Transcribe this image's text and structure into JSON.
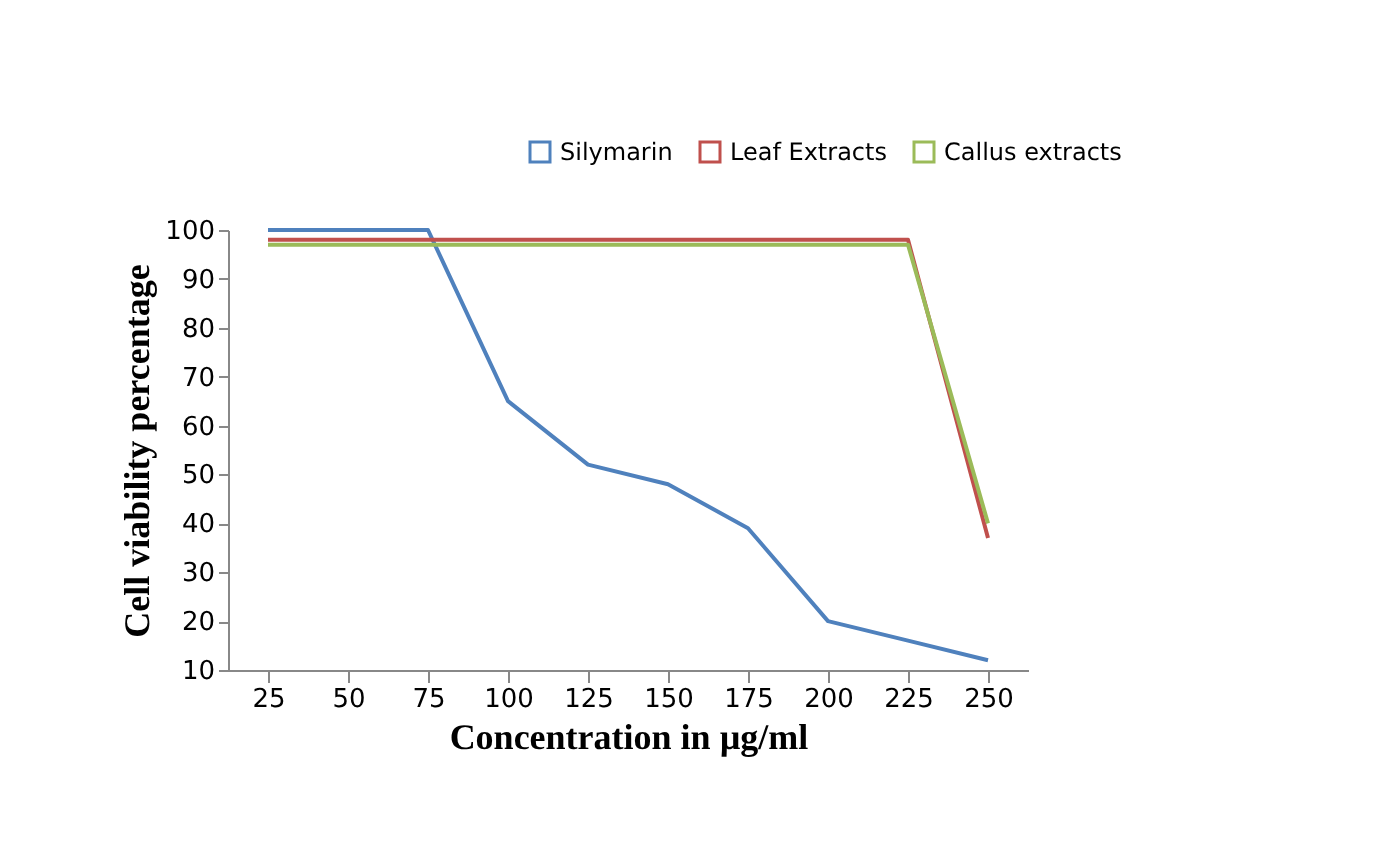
{
  "chart_data": {
    "type": "line",
    "xlabel": "Concentration  in µg/ml",
    "ylabel": "Cell viability  percentage",
    "categories": [
      "25",
      "50",
      "75",
      "100",
      "125",
      "150",
      "175",
      "200",
      "225",
      "250"
    ],
    "series": [
      {
        "name": "Silymarin",
        "color": "#4f81bd",
        "values": [
          100,
          100,
          100,
          65,
          52,
          48,
          39,
          20,
          16,
          12
        ]
      },
      {
        "name": "Leaf Extracts",
        "color": "#c0504d",
        "values": [
          98,
          98,
          98,
          98,
          98,
          98,
          98,
          98,
          98,
          37
        ]
      },
      {
        "name": "Callus extracts",
        "color": "#9bbb59",
        "values": [
          97,
          97,
          97,
          97,
          97,
          97,
          97,
          97,
          97,
          40
        ]
      }
    ],
    "ylim": [
      10,
      100
    ],
    "yticks": [
      10,
      20,
      30,
      40,
      50,
      60,
      70,
      80,
      90,
      100
    ],
    "grid": false,
    "legend": "top right",
    "marker": "none",
    "line_style": "solid"
  }
}
